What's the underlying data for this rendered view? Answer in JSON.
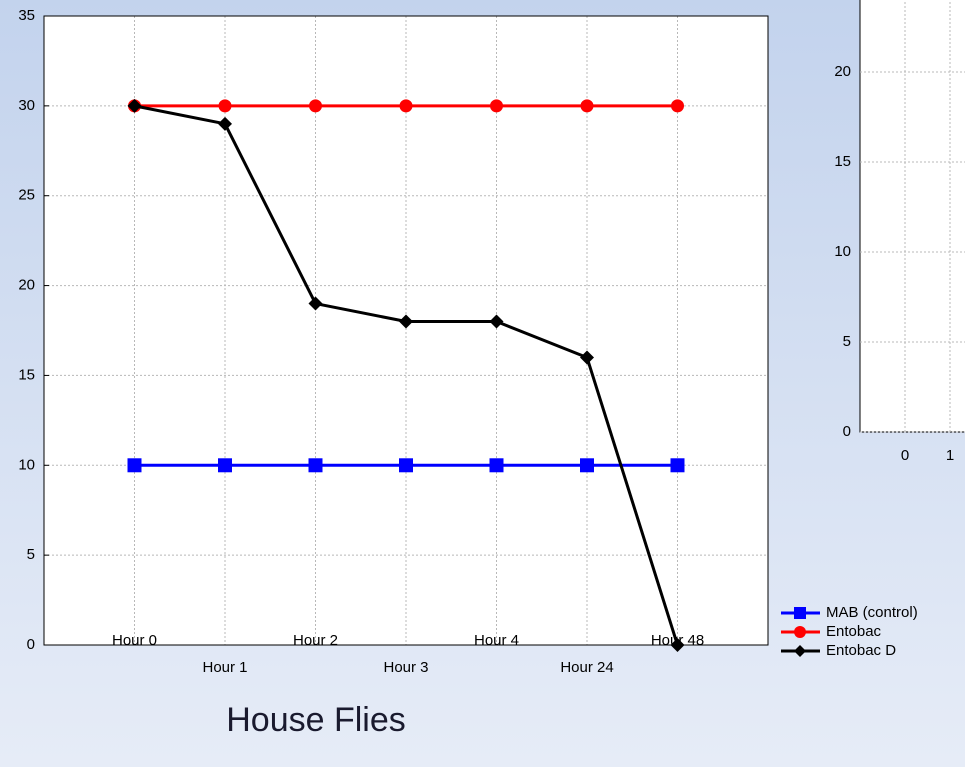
{
  "chart_data": [
    {
      "type": "line",
      "title": "House Flies",
      "categories": [
        "Hour 0",
        "Hour 1",
        "Hour 2",
        "Hour 3",
        "Hour 4",
        "Hour 24",
        "Hour 48"
      ],
      "series": [
        {
          "name": "MAB (control)",
          "color": "#0000ff",
          "marker": "square",
          "values": [
            10,
            10,
            10,
            10,
            10,
            10,
            10
          ]
        },
        {
          "name": "Entobac",
          "color": "#ff0000",
          "marker": "circle",
          "values": [
            30,
            30,
            30,
            30,
            30,
            30,
            30
          ]
        },
        {
          "name": "Entobac D",
          "color": "#000000",
          "marker": "diamond",
          "values": [
            30,
            29,
            19,
            18,
            18,
            16,
            0
          ]
        }
      ],
      "ylim": [
        0,
        35
      ],
      "yticks": [
        0,
        5,
        10,
        15,
        20,
        25,
        30,
        35
      ],
      "grid": true,
      "legend": "bottom-right"
    },
    {
      "type": "line",
      "xlim": [
        -1,
        5
      ],
      "xticks": [
        0,
        1
      ],
      "ylim": [
        0,
        25
      ],
      "yticks": [
        0,
        5,
        10,
        15,
        20
      ],
      "grid": true
    }
  ]
}
